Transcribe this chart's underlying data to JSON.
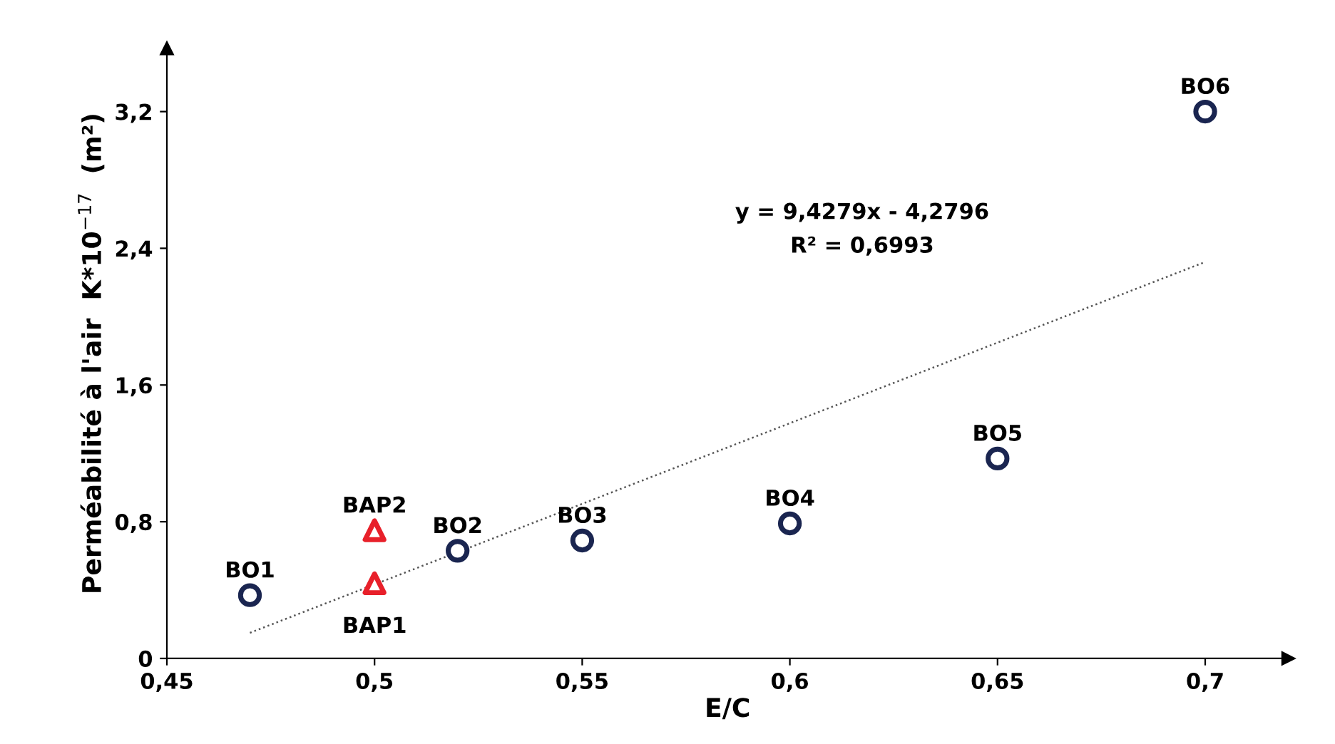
{
  "chart_data": {
    "type": "scatter",
    "xlabel": "E/C",
    "ylabel": "Perméabilité à l'air  K*10$^{−17}$  (m²)",
    "xlim": [
      0.45,
      0.72
    ],
    "ylim": [
      0,
      3.57
    ],
    "xticks": [
      {
        "value": 0.45,
        "label": "0,45"
      },
      {
        "value": 0.5,
        "label": "0,5"
      },
      {
        "value": 0.55,
        "label": "0,55"
      },
      {
        "value": 0.6,
        "label": "0,6"
      },
      {
        "value": 0.65,
        "label": "0,65"
      },
      {
        "value": 0.7,
        "label": "0,7"
      }
    ],
    "yticks": [
      0,
      {
        "value": 0.8,
        "label": "0,8"
      },
      {
        "value": 1.6,
        "label": "1,6"
      },
      {
        "value": 2.4,
        "label": "2,4"
      },
      {
        "value": 3.2,
        "label": "3,2"
      }
    ],
    "grid": false,
    "legend": false,
    "series": [
      {
        "marker": "circle",
        "color": "#1a2550",
        "x": [
          0.47,
          0.52,
          0.55,
          0.6,
          0.65,
          0.7
        ],
        "values": [
          0.37,
          0.63,
          0.69,
          0.79,
          1.17,
          3.2
        ]
      },
      {
        "marker": "triangle",
        "color": "#e8202a",
        "x": [
          0.5,
          0.5
        ],
        "values": [
          0.44,
          0.75
        ]
      },
      {
        "type": "line",
        "color": "#555555",
        "line_style": "dotted",
        "x": [
          0.47,
          0.7
        ],
        "values": [
          0.15,
          2.32
        ]
      }
    ],
    "annotations": [
      {
        "text": "BO1",
        "x": 0.47,
        "y": 0.37
      },
      {
        "text": "BO2",
        "x": 0.52,
        "y": 0.63
      },
      {
        "text": "BO3",
        "x": 0.55,
        "y": 0.69
      },
      {
        "text": "BO4",
        "x": 0.6,
        "y": 0.79
      },
      {
        "text": "BO5",
        "x": 0.65,
        "y": 1.17
      },
      {
        "text": "BO6",
        "x": 0.7,
        "y": 3.2
      },
      {
        "text": "BAP1",
        "x": 0.5,
        "y": 0.44
      },
      {
        "text": "BAP2",
        "x": 0.5,
        "y": 0.75
      },
      "y = 9,4279x - 4,2796",
      "R² = 0,6993"
    ]
  }
}
